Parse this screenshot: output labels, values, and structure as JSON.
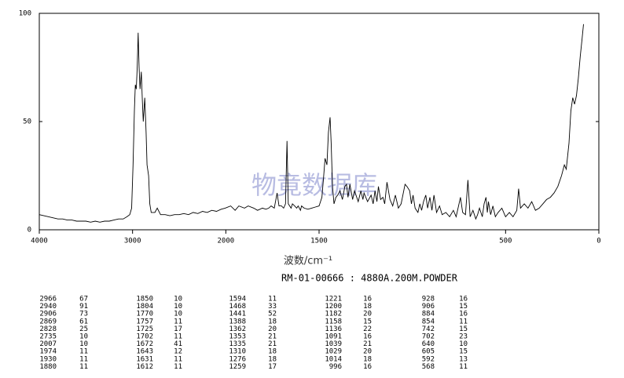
{
  "chart_data": {
    "type": "line",
    "xlabel": "波数/cm⁻¹",
    "subtitle": "RM-01-00666 : 4880A.200M.POWDER",
    "watermark": "物竟数据库",
    "xlim": [
      4000,
      0
    ],
    "xbreak": 2000,
    "xticks": [
      4000,
      3000,
      2000,
      1500,
      500,
      0
    ],
    "ylim": [
      0,
      100
    ],
    "yticks": [
      0,
      50,
      100
    ],
    "x": [
      4000,
      3950,
      3900,
      3850,
      3800,
      3750,
      3700,
      3650,
      3600,
      3550,
      3500,
      3450,
      3400,
      3350,
      3300,
      3250,
      3200,
      3150,
      3100,
      3060,
      3030,
      3010,
      2995,
      2980,
      2970,
      2960,
      2950,
      2940,
      2930,
      2920,
      2906,
      2895,
      2885,
      2869,
      2855,
      2845,
      2828,
      2815,
      2800,
      2760,
      2735,
      2700,
      2650,
      2600,
      2550,
      2500,
      2450,
      2400,
      2350,
      2300,
      2250,
      2200,
      2150,
      2100,
      2050,
      2007,
      1974,
      1950,
      1930,
      1900,
      1880,
      1850,
      1830,
      1804,
      1785,
      1770,
      1757,
      1740,
      1725,
      1715,
      1702,
      1690,
      1680,
      1672,
      1665,
      1650,
      1643,
      1631,
      1620,
      1612,
      1600,
      1594,
      1580,
      1560,
      1540,
      1520,
      1500,
      1485,
      1475,
      1468,
      1458,
      1450,
      1441,
      1435,
      1428,
      1420,
      1410,
      1400,
      1388,
      1375,
      1362,
      1353,
      1345,
      1335,
      1320,
      1310,
      1290,
      1276,
      1265,
      1259,
      1240,
      1221,
      1210,
      1200,
      1190,
      1182,
      1170,
      1158,
      1148,
      1136,
      1120,
      1105,
      1091,
      1075,
      1060,
      1039,
      1029,
      1014,
      1005,
      996,
      985,
      970,
      960,
      950,
      940,
      928,
      918,
      906,
      895,
      884,
      870,
      854,
      840,
      820,
      800,
      780,
      765,
      742,
      730,
      715,
      702,
      690,
      675,
      660,
      650,
      640,
      625,
      615,
      605,
      598,
      592,
      580,
      568,
      555,
      540,
      520,
      500,
      480,
      460,
      440,
      430,
      420,
      400,
      380,
      360,
      340,
      320,
      300,
      280,
      260,
      240,
      220,
      200,
      185,
      175,
      160,
      150,
      140,
      130,
      120,
      110,
      100,
      90,
      82
    ],
    "series": [
      {
        "color": "#000000",
        "values": [
          7,
          6.5,
          6,
          5.5,
          5,
          5,
          4.5,
          4.5,
          4,
          4,
          4,
          3.5,
          4,
          3.5,
          4,
          4,
          4.5,
          5,
          5,
          6,
          7,
          10,
          30,
          55,
          67,
          65,
          75,
          91,
          75,
          65,
          73,
          60,
          50,
          61,
          45,
          30,
          25,
          12,
          8,
          8,
          10,
          7,
          7,
          6.5,
          7,
          7,
          7.5,
          7,
          8,
          7.5,
          8.5,
          8,
          9,
          8.5,
          9.5,
          10,
          11,
          9,
          11,
          10,
          11,
          10,
          9,
          10,
          9.5,
          10,
          11,
          10,
          17,
          11,
          11,
          10,
          12,
          41,
          12,
          10,
          12,
          11,
          10,
          11,
          9,
          11,
          10,
          9.5,
          10,
          10.5,
          11,
          15,
          25,
          33,
          30,
          45,
          52,
          40,
          20,
          12,
          15,
          16,
          18,
          14,
          20,
          21,
          15,
          21,
          14,
          18,
          13,
          18,
          14,
          17,
          13,
          16,
          12,
          18,
          13,
          20,
          14,
          15,
          12,
          22,
          14,
          11,
          16,
          10,
          12,
          21,
          20,
          18,
          12,
          16,
          10,
          8,
          12,
          9,
          13,
          16,
          10,
          15,
          9,
          16,
          8,
          11,
          7,
          8,
          6,
          9,
          6,
          15,
          8,
          7,
          23,
          6,
          9,
          5,
          7,
          10,
          6,
          12,
          15,
          8,
          13,
          7,
          11,
          6,
          8,
          10,
          6,
          8,
          6,
          9,
          19,
          10,
          12,
          10,
          13,
          9,
          10,
          12,
          14,
          15,
          17,
          20,
          25,
          30,
          28,
          40,
          55,
          61,
          58,
          62,
          70,
          80,
          88,
          95
        ]
      }
    ]
  },
  "peak_table": {
    "rows": [
      [
        2966,
        67,
        1850,
        10,
        1594,
        11,
        1221,
        16,
        928,
        16
      ],
      [
        2940,
        91,
        1804,
        10,
        1468,
        33,
        1200,
        18,
        906,
        15
      ],
      [
        2906,
        73,
        1770,
        10,
        1441,
        52,
        1182,
        20,
        884,
        16
      ],
      [
        2869,
        61,
        1757,
        11,
        1388,
        18,
        1158,
        15,
        854,
        11
      ],
      [
        2828,
        25,
        1725,
        17,
        1362,
        20,
        1136,
        22,
        742,
        15
      ],
      [
        2735,
        10,
        1702,
        11,
        1353,
        21,
        1091,
        16,
        702,
        23
      ],
      [
        2007,
        10,
        1672,
        41,
        1335,
        21,
        1039,
        21,
        640,
        10
      ],
      [
        1974,
        11,
        1643,
        12,
        1310,
        18,
        1029,
        20,
        605,
        15
      ],
      [
        1930,
        11,
        1631,
        11,
        1276,
        18,
        1014,
        18,
        592,
        13
      ],
      [
        1880,
        11,
        1612,
        11,
        1259,
        17,
        996,
        16,
        568,
        11
      ]
    ]
  }
}
